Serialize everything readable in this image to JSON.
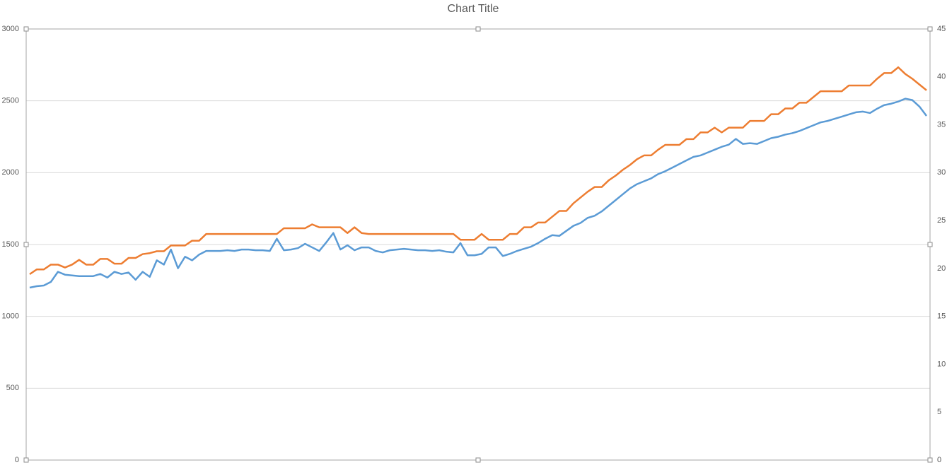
{
  "chart_data": {
    "type": "line",
    "title": "Chart Title",
    "ylim": [
      0,
      3000
    ],
    "yticks": [
      0,
      500,
      1000,
      1500,
      2000,
      2500,
      3000
    ],
    "y2lim": [
      0,
      45
    ],
    "y2ticks": [
      0,
      5,
      10,
      15,
      20,
      25,
      30,
      35,
      40,
      45
    ],
    "grid": true,
    "series": [
      {
        "color": "#5b9bd5",
        "values": [
          1200,
          1210,
          1215,
          1240,
          1310,
          1290,
          1285,
          1280,
          1280,
          1280,
          1295,
          1270,
          1310,
          1295,
          1305,
          1255,
          1310,
          1275,
          1390,
          1360,
          1465,
          1335,
          1415,
          1390,
          1430,
          1455,
          1455,
          1455,
          1460,
          1455,
          1465,
          1465,
          1460,
          1460,
          1455,
          1540,
          1460,
          1465,
          1475,
          1505,
          1480,
          1455,
          1515,
          1580,
          1465,
          1495,
          1460,
          1480,
          1480,
          1455,
          1445,
          1460,
          1465,
          1470,
          1465,
          1460,
          1460,
          1455,
          1460,
          1450,
          1445,
          1510,
          1425,
          1425,
          1435,
          1480,
          1480,
          1420,
          1435,
          1455,
          1470,
          1485,
          1510,
          1540,
          1565,
          1560,
          1595,
          1630,
          1650,
          1685,
          1700,
          1730,
          1770,
          1810,
          1850,
          1890,
          1920,
          1940,
          1960,
          1990,
          2010,
          2035,
          2060,
          2085,
          2110,
          2120,
          2140,
          2160,
          2180,
          2195,
          2235,
          2200,
          2205,
          2200,
          2220,
          2240,
          2250,
          2265,
          2275,
          2290,
          2310,
          2330,
          2350,
          2360,
          2375,
          2390,
          2405,
          2420,
          2425,
          2415,
          2445,
          2470,
          2480,
          2495,
          2515,
          2505,
          2460,
          2395
        ]
      },
      {
        "color": "#ed7d31",
        "axis": "y2",
        "values": [
          19.4,
          19.9,
          19.9,
          20.4,
          20.4,
          20.1,
          20.4,
          20.9,
          20.4,
          20.4,
          21.0,
          21.0,
          20.5,
          20.5,
          21.1,
          21.1,
          21.5,
          21.6,
          21.8,
          21.8,
          22.4,
          22.4,
          22.4,
          22.9,
          22.9,
          23.6,
          23.6,
          23.6,
          23.6,
          23.6,
          23.6,
          23.6,
          23.6,
          23.6,
          23.6,
          23.6,
          24.2,
          24.2,
          24.2,
          24.2,
          24.6,
          24.3,
          24.3,
          24.3,
          24.3,
          23.7,
          24.3,
          23.7,
          23.6,
          23.6,
          23.6,
          23.6,
          23.6,
          23.6,
          23.6,
          23.6,
          23.6,
          23.6,
          23.6,
          23.6,
          23.6,
          23.0,
          23.0,
          23.0,
          23.6,
          23.0,
          23.0,
          23.0,
          23.6,
          23.6,
          24.3,
          24.3,
          24.8,
          24.8,
          25.4,
          26.0,
          26.0,
          26.8,
          27.4,
          28.0,
          28.5,
          28.5,
          29.2,
          29.7,
          30.3,
          30.8,
          31.4,
          31.8,
          31.8,
          32.4,
          32.9,
          32.9,
          32.9,
          33.5,
          33.5,
          34.2,
          34.2,
          34.7,
          34.2,
          34.7,
          34.7,
          34.7,
          35.4,
          35.4,
          35.4,
          36.1,
          36.1,
          36.7,
          36.7,
          37.3,
          37.3,
          37.9,
          38.5,
          38.5,
          38.5,
          38.5,
          39.1,
          39.1,
          39.1,
          39.1,
          39.8,
          40.4,
          40.4,
          41.0,
          40.3,
          39.8,
          39.2,
          38.6
        ]
      }
    ]
  }
}
